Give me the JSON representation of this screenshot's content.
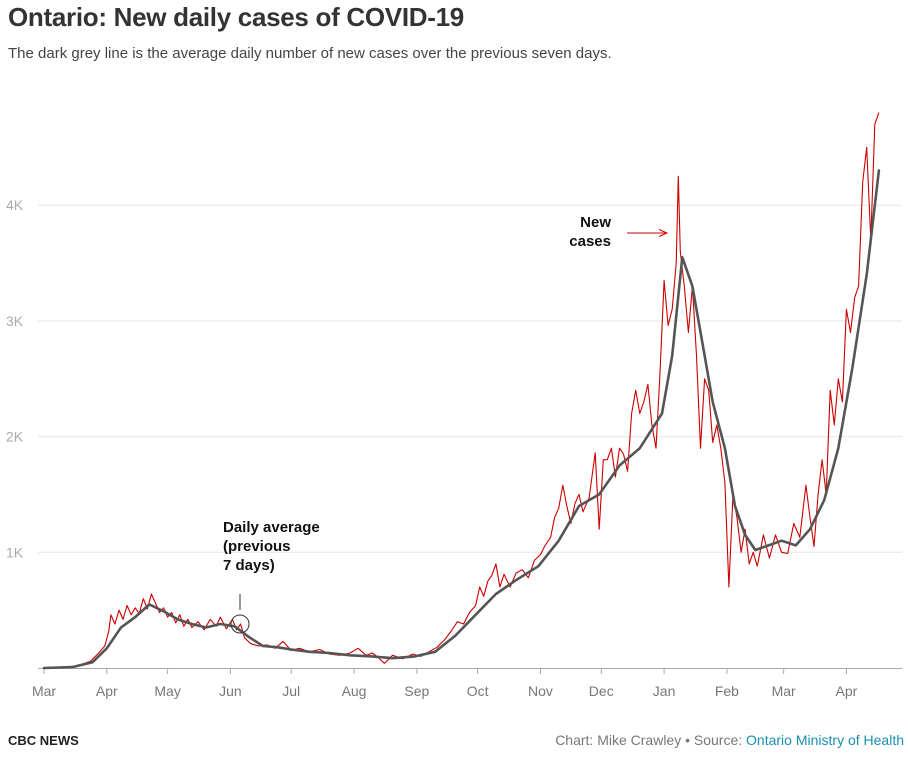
{
  "header": {
    "title": "Ontario: New daily cases of COVID-19",
    "subtitle": "The dark grey line is the average daily number of new cases over the previous seven days."
  },
  "footer": {
    "brand": "CBC NEWS",
    "credit_prefix": "Chart: Mike Crawley • Source: ",
    "source_link": "Ontario Ministry of Health"
  },
  "annotations": {
    "new_cases_line1": "New",
    "new_cases_line2": "cases",
    "avg_line1": "Daily average",
    "avg_line2": "(previous",
    "avg_line3": "7 days)"
  },
  "colors": {
    "daily": "#cc0000",
    "average": "#555555",
    "grid": "#e6e6e6",
    "source_link": "#1a8fb0"
  },
  "chart_data": {
    "type": "line",
    "title": "Ontario: New daily cases of COVID-19",
    "x_unit": "date",
    "x_tick_labels": [
      "Mar",
      "Apr",
      "May",
      "Jun",
      "Jul",
      "Aug",
      "Sep",
      "Oct",
      "Nov",
      "Dec",
      "Jan",
      "Feb",
      "Mar",
      "Apr"
    ],
    "x_tick_dates": [
      "2020-03-01",
      "2020-04-01",
      "2020-05-01",
      "2020-06-01",
      "2020-07-01",
      "2020-08-01",
      "2020-09-01",
      "2020-10-01",
      "2020-11-01",
      "2020-12-01",
      "2021-01-01",
      "2021-02-01",
      "2021-03-01",
      "2021-04-01"
    ],
    "y_tick_labels": [
      "1K",
      "2K",
      "3K",
      "4K"
    ],
    "y_tick_values": [
      1000,
      2000,
      3000,
      4000
    ],
    "xlim": [
      "2020-03-01",
      "2021-04-22"
    ],
    "ylim": [
      0,
      4800
    ],
    "grid": true,
    "series": [
      {
        "role": "daily",
        "points": [
          [
            "2020-03-01",
            0
          ],
          [
            "2020-03-10",
            5
          ],
          [
            "2020-03-18",
            20
          ],
          [
            "2020-03-24",
            60
          ],
          [
            "2020-03-28",
            130
          ],
          [
            "2020-03-31",
            190
          ],
          [
            "2020-04-02",
            320
          ],
          [
            "2020-04-03",
            460
          ],
          [
            "2020-04-05",
            380
          ],
          [
            "2020-04-07",
            500
          ],
          [
            "2020-04-09",
            420
          ],
          [
            "2020-04-11",
            540
          ],
          [
            "2020-04-13",
            460
          ],
          [
            "2020-04-15",
            520
          ],
          [
            "2020-04-17",
            470
          ],
          [
            "2020-04-19",
            600
          ],
          [
            "2020-04-21",
            510
          ],
          [
            "2020-04-23",
            640
          ],
          [
            "2020-04-25",
            560
          ],
          [
            "2020-04-27",
            480
          ],
          [
            "2020-04-29",
            520
          ],
          [
            "2020-05-01",
            440
          ],
          [
            "2020-05-03",
            480
          ],
          [
            "2020-05-05",
            390
          ],
          [
            "2020-05-07",
            460
          ],
          [
            "2020-05-09",
            360
          ],
          [
            "2020-05-11",
            420
          ],
          [
            "2020-05-13",
            350
          ],
          [
            "2020-05-16",
            400
          ],
          [
            "2020-05-19",
            330
          ],
          [
            "2020-05-22",
            420
          ],
          [
            "2020-05-25",
            360
          ],
          [
            "2020-05-27",
            440
          ],
          [
            "2020-05-30",
            340
          ],
          [
            "2020-06-02",
            420
          ],
          [
            "2020-06-04",
            330
          ],
          [
            "2020-06-06",
            380
          ],
          [
            "2020-06-08",
            260
          ],
          [
            "2020-06-11",
            210
          ],
          [
            "2020-06-15",
            190
          ],
          [
            "2020-06-19",
            200
          ],
          [
            "2020-06-23",
            170
          ],
          [
            "2020-06-27",
            230
          ],
          [
            "2020-07-01",
            150
          ],
          [
            "2020-07-05",
            170
          ],
          [
            "2020-07-10",
            140
          ],
          [
            "2020-07-15",
            160
          ],
          [
            "2020-07-20",
            120
          ],
          [
            "2020-07-25",
            110
          ],
          [
            "2020-07-30",
            130
          ],
          [
            "2020-08-03",
            170
          ],
          [
            "2020-08-07",
            110
          ],
          [
            "2020-08-10",
            130
          ],
          [
            "2020-08-13",
            90
          ],
          [
            "2020-08-16",
            40
          ],
          [
            "2020-08-20",
            110
          ],
          [
            "2020-08-25",
            80
          ],
          [
            "2020-08-30",
            120
          ],
          [
            "2020-09-03",
            100
          ],
          [
            "2020-09-07",
            140
          ],
          [
            "2020-09-11",
            180
          ],
          [
            "2020-09-15",
            250
          ],
          [
            "2020-09-18",
            320
          ],
          [
            "2020-09-21",
            400
          ],
          [
            "2020-09-24",
            380
          ],
          [
            "2020-09-27",
            480
          ],
          [
            "2020-09-30",
            540
          ],
          [
            "2020-10-02",
            700
          ],
          [
            "2020-10-04",
            620
          ],
          [
            "2020-10-06",
            750
          ],
          [
            "2020-10-08",
            800
          ],
          [
            "2020-10-10",
            900
          ],
          [
            "2020-10-12",
            700
          ],
          [
            "2020-10-14",
            810
          ],
          [
            "2020-10-17",
            700
          ],
          [
            "2020-10-20",
            820
          ],
          [
            "2020-10-23",
            850
          ],
          [
            "2020-10-26",
            780
          ],
          [
            "2020-10-29",
            930
          ],
          [
            "2020-11-01",
            980
          ],
          [
            "2020-11-03",
            1050
          ],
          [
            "2020-11-06",
            1130
          ],
          [
            "2020-11-08",
            1300
          ],
          [
            "2020-11-10",
            1380
          ],
          [
            "2020-11-12",
            1580
          ],
          [
            "2020-11-14",
            1400
          ],
          [
            "2020-11-16",
            1250
          ],
          [
            "2020-11-18",
            1420
          ],
          [
            "2020-11-20",
            1500
          ],
          [
            "2020-11-22",
            1350
          ],
          [
            "2020-11-25",
            1470
          ],
          [
            "2020-11-28",
            1860
          ],
          [
            "2020-11-30",
            1200
          ],
          [
            "2020-12-02",
            1800
          ],
          [
            "2020-12-04",
            1800
          ],
          [
            "2020-12-06",
            1900
          ],
          [
            "2020-12-08",
            1650
          ],
          [
            "2020-12-10",
            1900
          ],
          [
            "2020-12-12",
            1850
          ],
          [
            "2020-12-14",
            1700
          ],
          [
            "2020-12-16",
            2200
          ],
          [
            "2020-12-18",
            2400
          ],
          [
            "2020-12-20",
            2200
          ],
          [
            "2020-12-22",
            2300
          ],
          [
            "2020-12-24",
            2450
          ],
          [
            "2020-12-26",
            2100
          ],
          [
            "2020-12-28",
            1900
          ],
          [
            "2020-12-30",
            2550
          ],
          [
            "2021-01-01",
            3350
          ],
          [
            "2021-01-03",
            2960
          ],
          [
            "2021-01-05",
            3100
          ],
          [
            "2021-01-07",
            3500
          ],
          [
            "2021-01-08",
            4250
          ],
          [
            "2021-01-09",
            3600
          ],
          [
            "2021-01-11",
            3300
          ],
          [
            "2021-01-13",
            2900
          ],
          [
            "2021-01-15",
            3300
          ],
          [
            "2021-01-17",
            2700
          ],
          [
            "2021-01-19",
            1900
          ],
          [
            "2021-01-21",
            2500
          ],
          [
            "2021-01-23",
            2400
          ],
          [
            "2021-01-25",
            1950
          ],
          [
            "2021-01-27",
            2100
          ],
          [
            "2021-01-29",
            1900
          ],
          [
            "2021-01-31",
            1600
          ],
          [
            "2021-02-02",
            700
          ],
          [
            "2021-02-04",
            1500
          ],
          [
            "2021-02-06",
            1300
          ],
          [
            "2021-02-08",
            1000
          ],
          [
            "2021-02-10",
            1200
          ],
          [
            "2021-02-12",
            900
          ],
          [
            "2021-02-14",
            1000
          ],
          [
            "2021-02-16",
            880
          ],
          [
            "2021-02-19",
            1150
          ],
          [
            "2021-02-22",
            950
          ],
          [
            "2021-02-25",
            1150
          ],
          [
            "2021-02-28",
            1000
          ],
          [
            "2021-03-03",
            990
          ],
          [
            "2021-03-06",
            1250
          ],
          [
            "2021-03-09",
            1130
          ],
          [
            "2021-03-12",
            1580
          ],
          [
            "2021-03-14",
            1300
          ],
          [
            "2021-03-16",
            1050
          ],
          [
            "2021-03-18",
            1500
          ],
          [
            "2021-03-20",
            1800
          ],
          [
            "2021-03-22",
            1500
          ],
          [
            "2021-03-24",
            2400
          ],
          [
            "2021-03-26",
            2100
          ],
          [
            "2021-03-28",
            2500
          ],
          [
            "2021-03-30",
            2300
          ],
          [
            "2021-04-01",
            3100
          ],
          [
            "2021-04-03",
            2900
          ],
          [
            "2021-04-05",
            3200
          ],
          [
            "2021-04-07",
            3300
          ],
          [
            "2021-04-09",
            4200
          ],
          [
            "2021-04-11",
            4500
          ],
          [
            "2021-04-13",
            3700
          ],
          [
            "2021-04-15",
            4700
          ],
          [
            "2021-04-17",
            4800
          ]
        ]
      },
      {
        "role": "seven_day_average",
        "points": [
          [
            "2020-03-01",
            0
          ],
          [
            "2020-03-15",
            8
          ],
          [
            "2020-03-25",
            50
          ],
          [
            "2020-04-01",
            170
          ],
          [
            "2020-04-08",
            350
          ],
          [
            "2020-04-15",
            440
          ],
          [
            "2020-04-22",
            550
          ],
          [
            "2020-04-29",
            490
          ],
          [
            "2020-05-06",
            420
          ],
          [
            "2020-05-13",
            380
          ],
          [
            "2020-05-20",
            350
          ],
          [
            "2020-05-27",
            380
          ],
          [
            "2020-06-03",
            360
          ],
          [
            "2020-06-10",
            270
          ],
          [
            "2020-06-17",
            190
          ],
          [
            "2020-06-24",
            180
          ],
          [
            "2020-07-01",
            160
          ],
          [
            "2020-07-10",
            140
          ],
          [
            "2020-07-20",
            130
          ],
          [
            "2020-07-30",
            110
          ],
          [
            "2020-08-10",
            100
          ],
          [
            "2020-08-20",
            85
          ],
          [
            "2020-08-31",
            100
          ],
          [
            "2020-09-10",
            140
          ],
          [
            "2020-09-20",
            280
          ],
          [
            "2020-09-30",
            460
          ],
          [
            "2020-10-10",
            640
          ],
          [
            "2020-10-20",
            760
          ],
          [
            "2020-10-31",
            880
          ],
          [
            "2020-11-10",
            1100
          ],
          [
            "2020-11-20",
            1400
          ],
          [
            "2020-11-30",
            1500
          ],
          [
            "2020-12-10",
            1750
          ],
          [
            "2020-12-20",
            1900
          ],
          [
            "2020-12-31",
            2200
          ],
          [
            "2021-01-05",
            2700
          ],
          [
            "2021-01-10",
            3550
          ],
          [
            "2021-01-15",
            3300
          ],
          [
            "2021-01-20",
            2800
          ],
          [
            "2021-01-25",
            2300
          ],
          [
            "2021-01-31",
            1900
          ],
          [
            "2021-02-05",
            1400
          ],
          [
            "2021-02-10",
            1150
          ],
          [
            "2021-02-15",
            1020
          ],
          [
            "2021-02-20",
            1050
          ],
          [
            "2021-02-28",
            1100
          ],
          [
            "2021-03-07",
            1060
          ],
          [
            "2021-03-14",
            1200
          ],
          [
            "2021-03-21",
            1450
          ],
          [
            "2021-03-28",
            1900
          ],
          [
            "2021-04-04",
            2600
          ],
          [
            "2021-04-11",
            3400
          ],
          [
            "2021-04-17",
            4300
          ]
        ]
      }
    ]
  }
}
